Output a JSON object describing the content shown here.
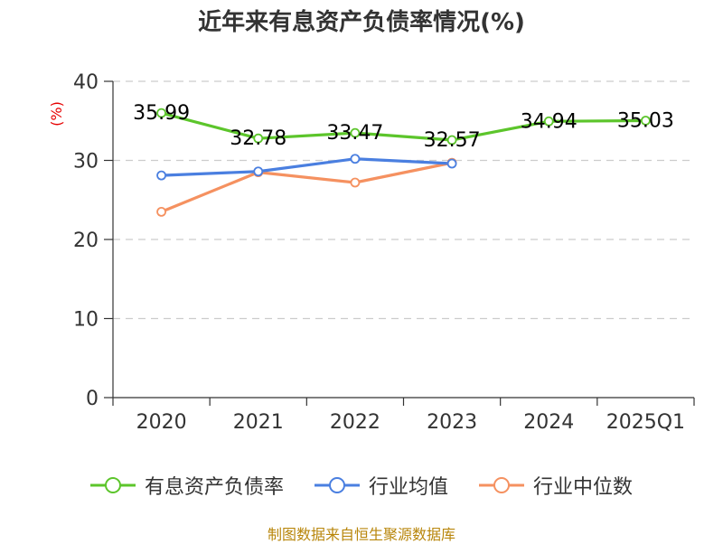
{
  "title": "近年来有息资产负债率情况(%)",
  "source": "制图数据来自恒生聚源数据库",
  "chart_data": {
    "type": "line",
    "title": "近年来有息资产负债率情况(%)",
    "ylabel": "(%)",
    "xlabel": "",
    "categories": [
      "2020",
      "2021",
      "2022",
      "2023",
      "2024",
      "2025Q1"
    ],
    "ylim": [
      0,
      40
    ],
    "yticks": [
      0,
      10,
      20,
      30,
      40
    ],
    "grid": true,
    "legend_position": "bottom",
    "series": [
      {
        "name": "有息资产负债率",
        "color": "#5cc52b",
        "values": [
          35.99,
          32.78,
          33.47,
          32.57,
          34.94,
          35.03
        ],
        "labels": [
          "35.99",
          "32.78",
          "33.47",
          "32.57",
          "34.94",
          "35.03"
        ]
      },
      {
        "name": "行业均值",
        "color": "#4a7fe0",
        "values": [
          28.1,
          28.6,
          30.2,
          29.6,
          null,
          null
        ]
      },
      {
        "name": "行业中位数",
        "color": "#f59160",
        "values": [
          23.5,
          28.5,
          27.2,
          29.7,
          null,
          null
        ]
      }
    ]
  }
}
